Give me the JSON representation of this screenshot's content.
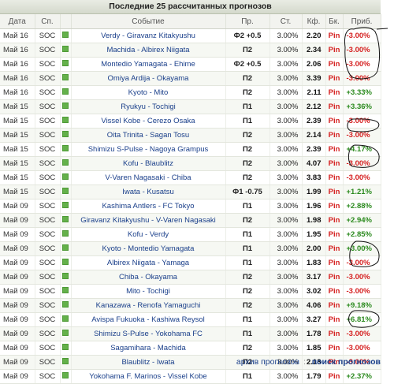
{
  "title": "Последние 25 рассчитанных прогнозов",
  "columns": {
    "date": "Дата",
    "sport": "Сп.",
    "event": "Событие",
    "bet": "Пр.",
    "stake": "Ст.",
    "odds": "Кф.",
    "bk": "Бк.",
    "profit": "Приб."
  },
  "rows": [
    {
      "date": "Май 16",
      "sport": "SOC",
      "event": "Verdy - Giravanz Kitakyushu",
      "bet": "Ф2 +0.5",
      "stake": "3.00%",
      "odds": "2.20",
      "bk": "Pin",
      "profit": "-3.00%"
    },
    {
      "date": "Май 16",
      "sport": "SOC",
      "event": "Machida - Albirex Niigata",
      "bet": "П2",
      "stake": "3.00%",
      "odds": "2.34",
      "bk": "Pin",
      "profit": "-3.00%"
    },
    {
      "date": "Май 16",
      "sport": "SOC",
      "event": "Montedio Yamagata - Ehime",
      "bet": "Ф2 +0.5",
      "stake": "3.00%",
      "odds": "2.06",
      "bk": "Pin",
      "profit": "-3.00%"
    },
    {
      "date": "Май 16",
      "sport": "SOC",
      "event": "Omiya Ardija - Okayama",
      "bet": "П2",
      "stake": "3.00%",
      "odds": "3.39",
      "bk": "Pin",
      "profit": "-3.00%"
    },
    {
      "date": "Май 16",
      "sport": "SOC",
      "event": "Kyoto - Mito",
      "bet": "П2",
      "stake": "3.00%",
      "odds": "2.11",
      "bk": "Pin",
      "profit": "+3.33%"
    },
    {
      "date": "Май 15",
      "sport": "SOC",
      "event": "Ryukyu - Tochigi",
      "bet": "П1",
      "stake": "3.00%",
      "odds": "2.12",
      "bk": "Pin",
      "profit": "+3.36%"
    },
    {
      "date": "Май 15",
      "sport": "SOC",
      "event": "Vissel Kobe - Cerezo Osaka",
      "bet": "П1",
      "stake": "3.00%",
      "odds": "2.39",
      "bk": "Pin",
      "profit": "-3.00%"
    },
    {
      "date": "Май 15",
      "sport": "SOC",
      "event": "Oita Trinita - Sagan Tosu",
      "bet": "П2",
      "stake": "3.00%",
      "odds": "2.14",
      "bk": "Pin",
      "profit": "-3.00%"
    },
    {
      "date": "Май 15",
      "sport": "SOC",
      "event": "Shimizu S-Pulse - Nagoya Grampus",
      "bet": "П2",
      "stake": "3.00%",
      "odds": "2.39",
      "bk": "Pin",
      "profit": "+4.17%"
    },
    {
      "date": "Май 15",
      "sport": "SOC",
      "event": "Kofu - Blaublitz",
      "bet": "П2",
      "stake": "3.00%",
      "odds": "4.07",
      "bk": "Pin",
      "profit": "-3.00%"
    },
    {
      "date": "Май 15",
      "sport": "SOC",
      "event": "V-Varen Nagasaki - Chiba",
      "bet": "П2",
      "stake": "3.00%",
      "odds": "3.83",
      "bk": "Pin",
      "profit": "-3.00%"
    },
    {
      "date": "Май 15",
      "sport": "SOC",
      "event": "Iwata - Kusatsu",
      "bet": "Ф1 -0.75",
      "stake": "3.00%",
      "odds": "1.99",
      "bk": "Pin",
      "profit": "+1.21%"
    },
    {
      "date": "Май 09",
      "sport": "SOC",
      "event": "Kashima Antlers - FC Tokyo",
      "bet": "П1",
      "stake": "3.00%",
      "odds": "1.96",
      "bk": "Pin",
      "profit": "+2.88%"
    },
    {
      "date": "Май 09",
      "sport": "SOC",
      "event": "Giravanz Kitakyushu - V-Varen Nagasaki",
      "bet": "П2",
      "stake": "3.00%",
      "odds": "1.98",
      "bk": "Pin",
      "profit": "+2.94%"
    },
    {
      "date": "Май 09",
      "sport": "SOC",
      "event": "Kofu - Verdy",
      "bet": "П1",
      "stake": "3.00%",
      "odds": "1.95",
      "bk": "Pin",
      "profit": "+2.85%"
    },
    {
      "date": "Май 09",
      "sport": "SOC",
      "event": "Kyoto - Montedio Yamagata",
      "bet": "П1",
      "stake": "3.00%",
      "odds": "2.00",
      "bk": "Pin",
      "profit": "+3.00%"
    },
    {
      "date": "Май 09",
      "sport": "SOC",
      "event": "Albirex Niigata - Yamaga",
      "bet": "П1",
      "stake": "3.00%",
      "odds": "1.83",
      "bk": "Pin",
      "profit": "-3.00%"
    },
    {
      "date": "Май 09",
      "sport": "SOC",
      "event": "Chiba - Okayama",
      "bet": "П2",
      "stake": "3.00%",
      "odds": "3.17",
      "bk": "Pin",
      "profit": "-3.00%"
    },
    {
      "date": "Май 09",
      "sport": "SOC",
      "event": "Mito - Tochigi",
      "bet": "П2",
      "stake": "3.00%",
      "odds": "3.02",
      "bk": "Pin",
      "profit": "-3.00%"
    },
    {
      "date": "Май 09",
      "sport": "SOC",
      "event": "Kanazawa - Renofa Yamaguchi",
      "bet": "П2",
      "stake": "3.00%",
      "odds": "4.06",
      "bk": "Pin",
      "profit": "+9.18%"
    },
    {
      "date": "Май 09",
      "sport": "SOC",
      "event": "Avispa Fukuoka - Kashiwa Reysol",
      "bet": "П1",
      "stake": "3.00%",
      "odds": "3.27",
      "bk": "Pin",
      "profit": "+6.81%"
    },
    {
      "date": "Май 09",
      "sport": "SOC",
      "event": "Shimizu S-Pulse - Yokohama FC",
      "bet": "П1",
      "stake": "3.00%",
      "odds": "1.78",
      "bk": "Pin",
      "profit": "-3.00%"
    },
    {
      "date": "Май 09",
      "sport": "SOC",
      "event": "Sagamihara - Machida",
      "bet": "П2",
      "stake": "3.00%",
      "odds": "1.85",
      "bk": "Pin",
      "profit": "-3.00%"
    },
    {
      "date": "Май 09",
      "sport": "SOC",
      "event": "Blaublitz - Iwata",
      "bet": "П2",
      "stake": "3.00%",
      "odds": "2.13",
      "bk": "Pin",
      "profit": "-3.00%"
    },
    {
      "date": "Май 09",
      "sport": "SOC",
      "event": "Yokohama F. Marinos - Vissel Kobe",
      "bet": "П1",
      "stake": "3.00%",
      "odds": "1.79",
      "bk": "Pin",
      "profit": "+2.37%"
    }
  ],
  "footer": {
    "archive_link": "архив прогнозов",
    "separator": "::",
    "search_link": "поиск прогнозов"
  },
  "colors": {
    "positive": "#2b8a1e",
    "negative": "#d51f1f",
    "event_link": "#1a3f8a",
    "sport_dot": "#64b14a"
  }
}
